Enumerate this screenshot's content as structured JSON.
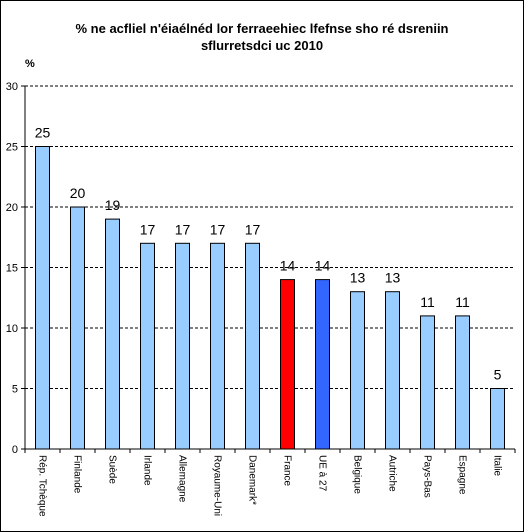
{
  "chart_data": {
    "type": "bar",
    "title_lines": [
      "% ne acfliel n'éiaélnéd lor ferraeehiec lfefnse sho ré dsreniin",
      "sflurretsdci uc 2010"
    ],
    "ylabel": "%",
    "xlabel": "",
    "ylim": [
      0,
      30
    ],
    "yticks": [
      0,
      5,
      10,
      15,
      20,
      25,
      30
    ],
    "grid": true,
    "legend": "none",
    "categories": [
      "Rép. Tchèque",
      "Finlande",
      "Suède",
      "Irlande",
      "Allemagne",
      "Royaume-Uni",
      "Danemark*",
      "France",
      "UE à 27",
      "Belgique",
      "Autriche",
      "Pays-Bas",
      "Espagne",
      "Italie"
    ],
    "values": [
      25,
      20,
      19,
      17,
      17,
      17,
      17,
      14,
      14,
      13,
      13,
      11,
      11,
      5
    ],
    "colors": {
      "default": "#99ccff",
      "highlight": {
        "France": "#ff0000",
        "UE à 27": "#3366ff"
      }
    }
  }
}
